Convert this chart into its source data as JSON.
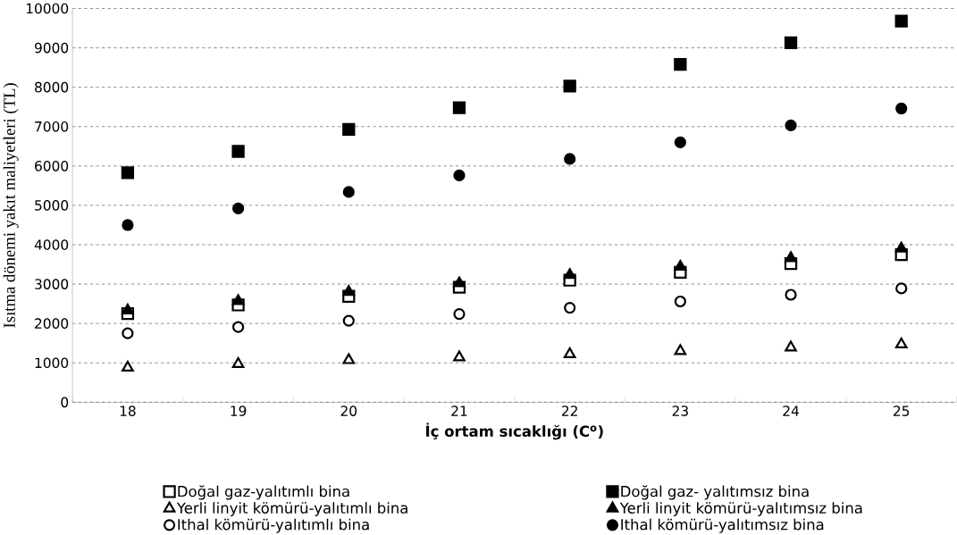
{
  "chart_data": {
    "type": "scatter",
    "xlabel": "İç ortam sıcaklığı (C$^{o}$)",
    "ylabel": "Isıtma dönemi yakıt maliyetleri (TL)",
    "categories": [
      "18",
      "19",
      "20",
      "21",
      "22",
      "23",
      "24",
      "25"
    ],
    "ylim": [
      0,
      10000
    ],
    "yticks": [
      0,
      1000,
      2000,
      3000,
      4000,
      5000,
      6000,
      7000,
      8000,
      9000,
      10000
    ],
    "grid": "y",
    "legend": "bottom",
    "series": [
      {
        "name": "Doğal gaz-yalıtımlı bina",
        "color": "#000000",
        "marker": "square",
        "values": [
          2250,
          2470,
          2690,
          2920,
          3100,
          3300,
          3520,
          3750
        ]
      },
      {
        "name": "Doğal gaz- yalıtımsız bina",
        "color": "#000000",
        "marker": "square",
        "values": [
          5830,
          6370,
          6930,
          7480,
          8030,
          8580,
          9130,
          9680
        ]
      },
      {
        "name": "Yerli linyit kömürü-yalıtımlı bina",
        "color": "#000000",
        "marker": "triangle",
        "values": [
          880,
          970,
          1070,
          1140,
          1220,
          1300,
          1390,
          1470
        ]
      },
      {
        "name": "Yerli linyit kömürü-yalıtımsız bina",
        "color": "#000000",
        "marker": "triangle",
        "values": [
          2330,
          2570,
          2800,
          3020,
          3230,
          3440,
          3660,
          3900
        ]
      },
      {
        "name": "Ithal kömürü-yalıtımlı bina",
        "color": "#000000",
        "marker": "circle",
        "values": [
          1750,
          1910,
          2070,
          2240,
          2400,
          2560,
          2730,
          2890
        ]
      },
      {
        "name": "Ithal kömürü-yalıtımsız bina",
        "color": "#000000",
        "marker": "circle",
        "values": [
          4500,
          4920,
          5340,
          5760,
          6180,
          6600,
          7030,
          7460
        ]
      }
    ]
  }
}
